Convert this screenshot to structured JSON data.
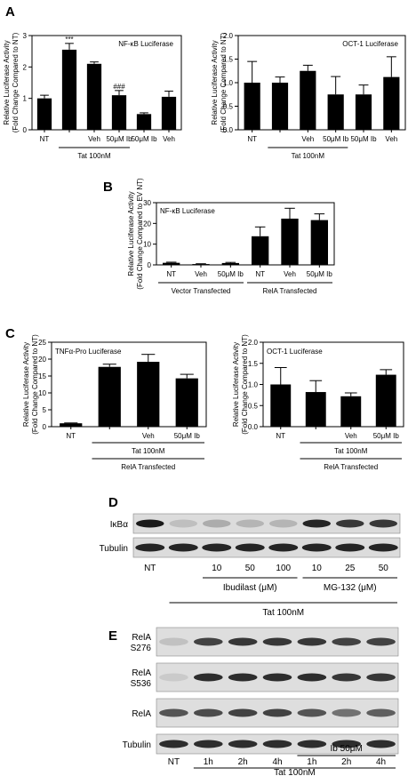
{
  "panels": {
    "A": "A",
    "B": "B",
    "C": "C",
    "D": "D",
    "E": "E"
  },
  "chart_data": [
    {
      "id": "A1",
      "type": "bar",
      "title": "NF-κB Luciferase",
      "ylabel": "Relative Luciferase Activity",
      "ylabel2": "(Fold Change Compared to NT)",
      "ylim": [
        0,
        3
      ],
      "yticks": [
        "0",
        "1",
        "2",
        "3"
      ],
      "categories": [
        "NT",
        "",
        "Veh",
        "50μM Ib",
        "50μM Ib",
        "Veh"
      ],
      "values": [
        1.0,
        2.55,
        2.1,
        1.1,
        0.5,
        1.05
      ],
      "errors": [
        0.1,
        0.2,
        0.06,
        0.15,
        0.04,
        0.18
      ],
      "significance": [
        "",
        "***",
        "",
        "###",
        "",
        ""
      ],
      "groups": [
        {
          "label": "Tat 100nM",
          "from": 1,
          "to": 3
        }
      ]
    },
    {
      "id": "A2",
      "type": "bar",
      "title": "OCT-1 Luciferase",
      "ylabel": "Relative Luciferase  Activity",
      "ylabel2": "(Fold Change Compared to NT)",
      "ylim": [
        0,
        2.0
      ],
      "yticks": [
        "0.0",
        "0.5",
        "1.0",
        "1.5",
        "2.0"
      ],
      "categories": [
        "NT",
        "",
        "Veh",
        "50μM Ib",
        "50μM Ib",
        "Veh"
      ],
      "values": [
        1.0,
        1.0,
        1.25,
        0.75,
        0.75,
        1.12
      ],
      "errors": [
        0.45,
        0.12,
        0.12,
        0.38,
        0.2,
        0.43
      ],
      "groups": [
        {
          "label": "Tat 100nM",
          "from": 1,
          "to": 3
        }
      ]
    },
    {
      "id": "B",
      "type": "bar",
      "title": "NF-κB Luciferase",
      "ylabel": "Relative Luciferase Activity",
      "ylabel2": "(Fold Change Compared to EV NT)",
      "ylim": [
        0,
        30
      ],
      "yticks": [
        "0",
        "10",
        "20",
        "30"
      ],
      "categories": [
        "NT",
        "Veh",
        "50μM Ib",
        "NT",
        "Veh",
        "50μM Ib"
      ],
      "values": [
        1.0,
        0.4,
        0.9,
        13.8,
        22.3,
        21.6
      ],
      "errors": [
        0.3,
        0.15,
        0.3,
        4.5,
        5.0,
        3.0
      ],
      "groups": [
        {
          "label": "Vector Transfected",
          "from": 0,
          "to": 2
        },
        {
          "label": "RelA Transfected",
          "from": 3,
          "to": 5
        }
      ]
    },
    {
      "id": "C1",
      "type": "bar",
      "title": "TNFα-Pro Luciferase",
      "ylabel": "Relative Luciferase Activity",
      "ylabel2": "(Fold Change Compared to NT)",
      "ylim": [
        0,
        25
      ],
      "yticks": [
        "0",
        "5",
        "10",
        "15",
        "20",
        "25"
      ],
      "categories": [
        "NT",
        "",
        "Veh",
        "50μM Ib"
      ],
      "values": [
        1.0,
        17.7,
        19.2,
        14.3
      ],
      "errors": [
        0.1,
        0.8,
        2.2,
        1.2
      ],
      "groups": [
        {
          "label": "Tat 100nM",
          "from": 1,
          "to": 3
        },
        {
          "label": "RelA Transfected",
          "from": 1,
          "to": 3
        }
      ]
    },
    {
      "id": "C2",
      "type": "bar",
      "title": "OCT-1 Luciferase",
      "ylabel": "Relative Luciferase Activity",
      "ylabel2": "(Fold Change Compared to NT)",
      "ylim": [
        0,
        2.0
      ],
      "yticks": [
        "0.0",
        "0.5",
        "1.0",
        "1.5",
        "2.0"
      ],
      "categories": [
        "NT",
        "",
        "Veh",
        "50μM Ib"
      ],
      "values": [
        1.0,
        0.82,
        0.72,
        1.23
      ],
      "errors": [
        0.4,
        0.27,
        0.08,
        0.12
      ],
      "groups": [
        {
          "label": "Tat 100nM",
          "from": 1,
          "to": 3
        },
        {
          "label": "RelA Transfected",
          "from": 1,
          "to": 3
        }
      ]
    }
  ],
  "blot_D": {
    "rows": [
      "IκBα",
      "Tubulin"
    ],
    "lanes": [
      "NT",
      "",
      "10",
      "50",
      "100",
      "10",
      "25",
      "50"
    ],
    "ikba_intensity": [
      1.0,
      0.15,
      0.25,
      0.2,
      0.2,
      0.95,
      0.85,
      0.85
    ],
    "groups": [
      {
        "label": "Ibudilast (μM)",
        "from": 2,
        "to": 4
      },
      {
        "label": "MG-132 (μM)",
        "from": 5,
        "to": 7
      },
      {
        "label": "Tat 100nM",
        "from": 1,
        "to": 7
      }
    ]
  },
  "blot_E": {
    "rows": [
      "RelA S276",
      "RelA S536",
      "RelA",
      "Tubulin"
    ],
    "row_line1": [
      "RelA",
      "RelA",
      "RelA",
      "Tubulin"
    ],
    "row_line2": [
      "S276",
      "S536",
      "",
      ""
    ],
    "lanes": [
      "NT",
      "1h",
      "2h",
      "4h",
      "1h",
      "2h",
      "4h"
    ],
    "groups": [
      {
        "label": "Ib 50μM",
        "from": 4,
        "to": 6
      },
      {
        "label": "Tat 100nM",
        "from": 1,
        "to": 6
      }
    ]
  }
}
